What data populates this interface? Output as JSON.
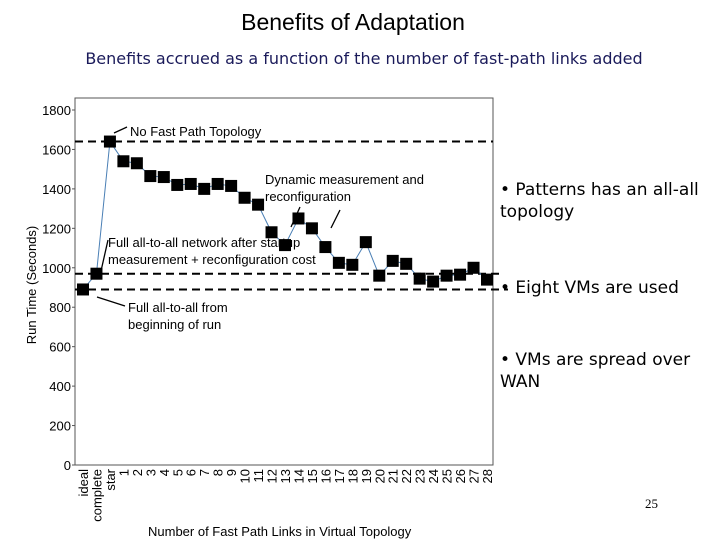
{
  "slide": {
    "title": "Benefits of Adaptation",
    "subtitle": "Benefits accrued as a function of the number of fast-path links added",
    "bullets": [
      "• Patterns has an all-all topology",
      "• Eight VMs are used",
      "• VMs are spread over WAN"
    ],
    "page_number": "25"
  },
  "chart_data": {
    "type": "line",
    "x_label": "Number of Fast Path Links in Virtual Topology",
    "y_label": "Run Time (Seconds)",
    "categories": [
      "ideal",
      "complete",
      "star",
      "1",
      "2",
      "3",
      "4",
      "5",
      "6",
      "7",
      "8",
      "9",
      "10",
      "11",
      "12",
      "13",
      "14",
      "15",
      "16",
      "17",
      "18",
      "19",
      "20",
      "21",
      "22",
      "23",
      "24",
      "25",
      "26",
      "27",
      "28"
    ],
    "values": [
      890,
      970,
      1640,
      1540,
      1530,
      1465,
      1460,
      1420,
      1425,
      1400,
      1425,
      1415,
      1355,
      1320,
      1180,
      1115,
      1250,
      1200,
      1105,
      1025,
      1015,
      1130,
      960,
      1035,
      1020,
      945,
      930,
      960,
      965,
      1000,
      940
    ],
    "color": "#4a7fb5",
    "marker_color": "#000000",
    "ylim": [
      0,
      1800
    ],
    "yticks": [
      0,
      200,
      400,
      600,
      800,
      1000,
      1200,
      1400,
      1600,
      1800
    ],
    "grid": false,
    "annotations": [
      {
        "lines": [
          "No Fast Path Topology"
        ]
      },
      {
        "lines": [
          "Dynamic measurement and",
          "reconfiguration"
        ]
      },
      {
        "lines": [
          "Full all-to-all network after startup",
          "measurement + reconfiguration cost"
        ]
      },
      {
        "lines": [
          "Full all-to-all from",
          "beginning of run"
        ]
      }
    ]
  }
}
